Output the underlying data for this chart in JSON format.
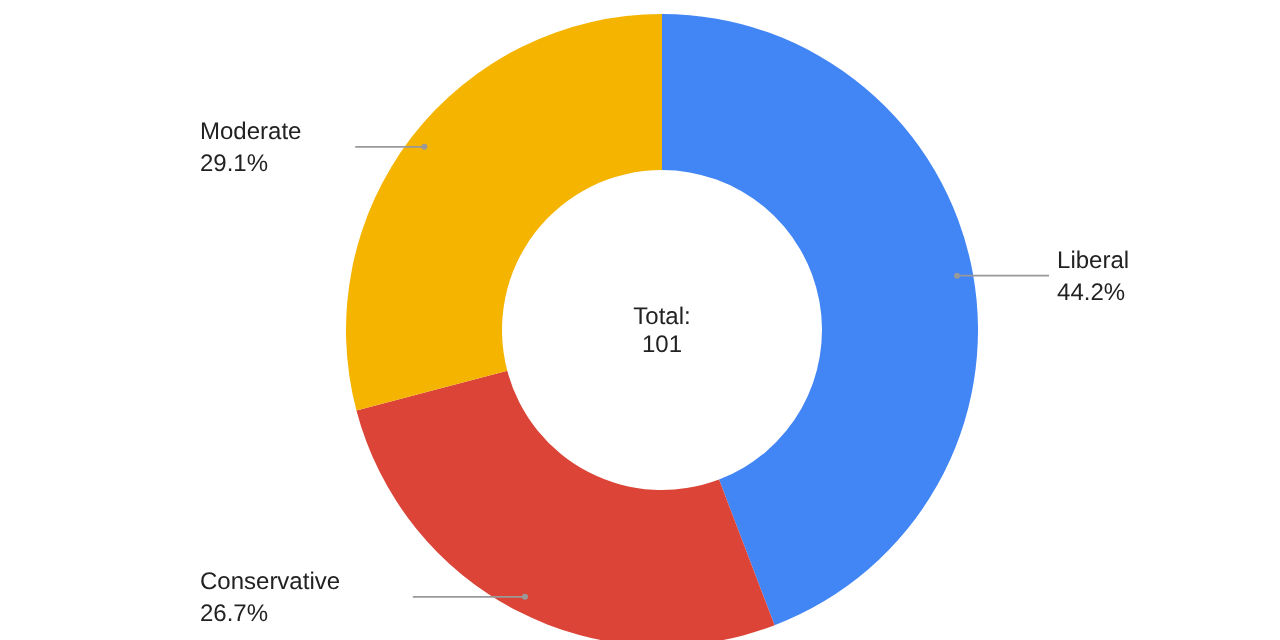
{
  "chart_data": {
    "type": "donut",
    "categories": [
      "Liberal",
      "Conservative",
      "Moderate"
    ],
    "values": [
      44.2,
      26.7,
      29.1
    ],
    "colors": [
      "#4285f4",
      "#db4437",
      "#f4b400"
    ],
    "value_labels": [
      "44.2%",
      "26.7%",
      "29.1%"
    ],
    "annotations": [
      "Total:",
      "101"
    ]
  }
}
